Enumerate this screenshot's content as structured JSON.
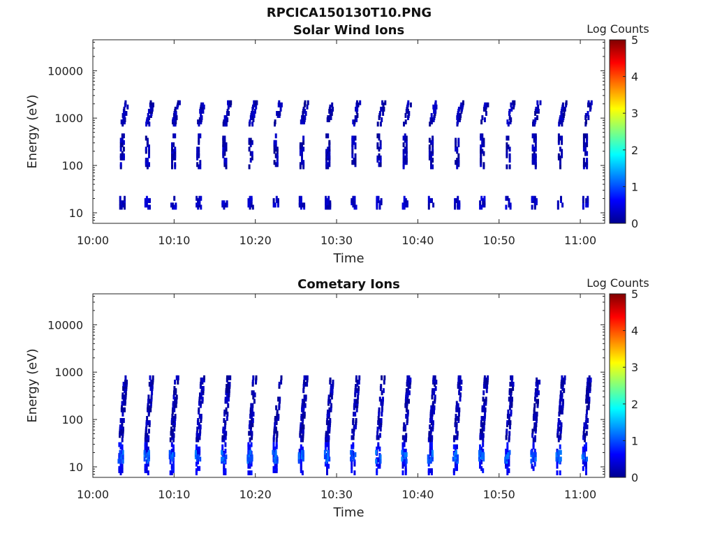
{
  "figure_title": "RPCICA150130T10.PNG",
  "chart_data": [
    {
      "type": "heatmap",
      "title": "Solar Wind Ions",
      "xlabel": "Time",
      "ylabel": "Energy (eV)",
      "y_scale": "log",
      "xlim": [
        "10:00",
        "11:03"
      ],
      "ylim": [
        6,
        45000
      ],
      "x_ticks": [
        "10:00",
        "10:10",
        "10:20",
        "10:30",
        "10:40",
        "10:50",
        "11:00"
      ],
      "y_ticks": [
        "10",
        "100",
        "1000",
        "10000"
      ],
      "colorbar": {
        "label": "Log Counts",
        "range": [
          0,
          5
        ],
        "ticks": [
          "0",
          "1",
          "2",
          "3",
          "4",
          "5"
        ],
        "colormap": "jet"
      },
      "grid": false,
      "scan_times": [
        "10:03.6",
        "10:06.7",
        "10:09.9",
        "10:13.0",
        "10:16.2",
        "10:19.4",
        "10:22.5",
        "10:25.7",
        "10:28.9",
        "10:32.1",
        "10:35.2",
        "10:38.4",
        "10:41.6",
        "10:44.8",
        "10:47.9",
        "10:51.1",
        "10:54.3",
        "10:57.5",
        "11:00.6"
      ],
      "bands": [
        {
          "energy_range": [
            800,
            2500
          ],
          "log_counts": 0.1
        },
        {
          "energy_range": [
            100,
            500
          ],
          "log_counts": 0.1
        },
        {
          "energy_range": [
            14,
            24
          ],
          "log_counts": 0.2
        }
      ]
    },
    {
      "type": "heatmap",
      "title": "Cometary Ions",
      "xlabel": "Time",
      "ylabel": "Energy (eV)",
      "y_scale": "log",
      "xlim": [
        "10:00",
        "11:03"
      ],
      "ylim": [
        6,
        45000
      ],
      "x_ticks": [
        "10:00",
        "10:10",
        "10:20",
        "10:30",
        "10:40",
        "10:50",
        "11:00"
      ],
      "y_ticks": [
        "10",
        "100",
        "1000",
        "10000"
      ],
      "colorbar": {
        "label": "Log Counts",
        "range": [
          0,
          5
        ],
        "ticks": [
          "0",
          "1",
          "2",
          "3",
          "4",
          "5"
        ],
        "colormap": "jet"
      },
      "grid": false,
      "scan_times": [
        "10:03.4",
        "10:06.6",
        "10:09.7",
        "10:12.9",
        "10:16.1",
        "10:19.3",
        "10:22.4",
        "10:25.6",
        "10:28.8",
        "10:32.0",
        "10:35.1",
        "10:38.3",
        "10:41.5",
        "10:44.6",
        "10:47.8",
        "10:51.0",
        "10:54.2",
        "10:57.3",
        "11:00.5"
      ],
      "bands": [
        {
          "energy_range": [
            40,
            900
          ],
          "log_counts": 0.1
        },
        {
          "energy_range": [
            8,
            35
          ],
          "log_counts": 0.5
        },
        {
          "energy_range": [
            14,
            24
          ],
          "log_counts": 1.0
        }
      ]
    }
  ]
}
